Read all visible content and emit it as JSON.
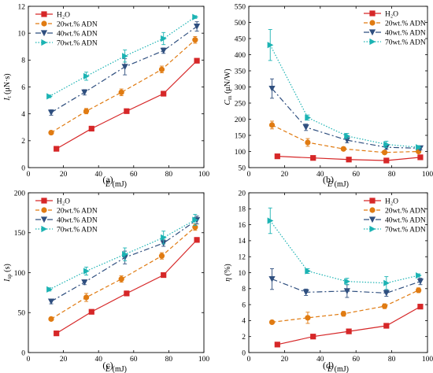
{
  "colors": {
    "H2O": "#d62728",
    "20wt.% ADN": "#e07b12",
    "40wt.% ADN": "#2f4f7f",
    "70wt.% ADN": "#1bb3b3"
  },
  "chart_data": [
    {
      "type": "line",
      "panel_label": "(a)",
      "xlabel_var": "E",
      "xlabel_unit": " (mJ)",
      "ylabel_var": "I",
      "ylabel_sub": "t",
      "ylabel_unit": " (μN·s)",
      "xlim": [
        0,
        100
      ],
      "ylim": [
        0,
        12
      ],
      "xticks": [
        0,
        20,
        40,
        60,
        80,
        100
      ],
      "yticks": [
        0,
        2,
        4,
        6,
        8,
        10,
        12
      ],
      "legend_position": "top-left",
      "series": [
        {
          "name": "H₂O",
          "key": "H2O",
          "marker": "square",
          "dash": "",
          "x": [
            16,
            36,
            56,
            77,
            96
          ],
          "y": [
            1.4,
            2.9,
            4.2,
            5.5,
            7.95
          ],
          "err": [
            0.1,
            0.1,
            0.15,
            0.1,
            0.15
          ]
        },
        {
          "name": "20wt.% ADN",
          "key": "20wt.% ADN",
          "marker": "circle",
          "dash": "5,3",
          "x": [
            13,
            33,
            53,
            76,
            95
          ],
          "y": [
            2.6,
            4.2,
            5.6,
            7.3,
            9.5
          ],
          "err": [
            0.1,
            0.2,
            0.25,
            0.25,
            0.25
          ]
        },
        {
          "name": "40wt.% ADN",
          "key": "40wt.% ADN",
          "marker": "triangle-down",
          "dash": "7,3,2,3",
          "x": [
            13,
            32,
            55,
            77,
            96
          ],
          "y": [
            4.1,
            5.6,
            7.5,
            8.7,
            10.5
          ],
          "err": [
            0.2,
            0.2,
            0.6,
            0.2,
            0.35
          ]
        },
        {
          "name": "70wt.% ADN",
          "key": "70wt.% ADN",
          "marker": "triangle-right",
          "dash": "1.5,2",
          "x": [
            12,
            33,
            55,
            77,
            95
          ],
          "y": [
            5.3,
            6.8,
            8.3,
            9.6,
            11.2
          ],
          "err": [
            0.1,
            0.3,
            0.45,
            0.45,
            0.1
          ]
        }
      ]
    },
    {
      "type": "line",
      "panel_label": "(b)",
      "xlabel_var": "E",
      "xlabel_unit": " (mJ)",
      "ylabel_var": "C",
      "ylabel_sub": "m",
      "ylabel_unit": " (μN/W)",
      "xlim": [
        0,
        100
      ],
      "ylim": [
        50,
        550
      ],
      "xticks": [
        0,
        20,
        40,
        60,
        80,
        100
      ],
      "yticks": [
        50,
        100,
        150,
        200,
        250,
        300,
        350,
        400,
        450,
        500,
        550
      ],
      "legend_position": "top-right",
      "series": [
        {
          "name": "H₂O",
          "key": "H2O",
          "marker": "square",
          "dash": "",
          "x": [
            16,
            36,
            56,
            77,
            96
          ],
          "y": [
            85,
            80,
            75,
            72,
            82
          ],
          "err": [
            3,
            3,
            3,
            3,
            3
          ]
        },
        {
          "name": "20wt.% ADN",
          "key": "20wt.% ADN",
          "marker": "circle",
          "dash": "5,3",
          "x": [
            13,
            33,
            53,
            76,
            95
          ],
          "y": [
            182,
            128,
            108,
            97,
            100
          ],
          "err": [
            12,
            12,
            5,
            5,
            5
          ]
        },
        {
          "name": "40wt.% ADN",
          "key": "40wt.% ADN",
          "marker": "triangle-down",
          "dash": "7,3,2,3",
          "x": [
            13,
            32,
            55,
            77,
            96
          ],
          "y": [
            295,
            175,
            135,
            113,
            110
          ],
          "err": [
            30,
            10,
            8,
            6,
            5
          ]
        },
        {
          "name": "70wt.% ADN",
          "key": "70wt.% ADN",
          "marker": "triangle-right",
          "dash": "1.5,2",
          "x": [
            12,
            33,
            55,
            77,
            95
          ],
          "y": [
            430,
            205,
            148,
            122,
            113
          ],
          "err": [
            48,
            8,
            8,
            10,
            5
          ]
        }
      ]
    },
    {
      "type": "line",
      "panel_label": "(c)",
      "xlabel_var": "E",
      "xlabel_unit": " (mJ)",
      "ylabel_var": "I",
      "ylabel_sub": "sp",
      "ylabel_unit": " (s)",
      "xlim": [
        0,
        100
      ],
      "ylim": [
        0,
        200
      ],
      "xticks": [
        0,
        20,
        40,
        60,
        80,
        100
      ],
      "yticks": [
        0,
        50,
        100,
        150,
        200
      ],
      "legend_position": "top-left",
      "series": [
        {
          "name": "H₂O",
          "key": "H2O",
          "marker": "square",
          "dash": "",
          "x": [
            16,
            36,
            56,
            77,
            96
          ],
          "y": [
            24,
            51,
            74,
            97,
            141
          ],
          "err": [
            2,
            2,
            3,
            2,
            3
          ]
        },
        {
          "name": "20wt.% ADN",
          "key": "20wt.% ADN",
          "marker": "circle",
          "dash": "5,3",
          "x": [
            13,
            33,
            53,
            76,
            95
          ],
          "y": [
            42,
            69,
            92,
            121,
            157
          ],
          "err": [
            2,
            5,
            4,
            4,
            4
          ]
        },
        {
          "name": "40wt.% ADN",
          "key": "40wt.% ADN",
          "marker": "triangle-down",
          "dash": "7,3,2,3",
          "x": [
            13,
            32,
            55,
            77,
            96
          ],
          "y": [
            64,
            88,
            119,
            137,
            166
          ],
          "err": [
            3,
            3,
            8,
            4,
            5
          ]
        },
        {
          "name": "70wt.% ADN",
          "key": "70wt.% ADN",
          "marker": "triangle-right",
          "dash": "1.5,2",
          "x": [
            12,
            33,
            55,
            77,
            95
          ],
          "y": [
            79,
            102,
            123,
            144,
            166
          ],
          "err": [
            2,
            5,
            8,
            8,
            7
          ]
        }
      ]
    },
    {
      "type": "line",
      "panel_label": "(d)",
      "xlabel_var": "E",
      "xlabel_unit": " (mJ)",
      "ylabel_var": "η",
      "ylabel_sub": "",
      "ylabel_unit": " (%)",
      "xlim": [
        0,
        100
      ],
      "ylim": [
        0,
        20
      ],
      "xticks": [
        0,
        20,
        40,
        60,
        80,
        100
      ],
      "yticks": [
        0,
        2,
        4,
        6,
        8,
        10,
        12,
        14,
        16,
        18,
        20
      ],
      "legend_position": "top-right",
      "series": [
        {
          "name": "H₂O",
          "key": "H2O",
          "marker": "square",
          "dash": "",
          "x": [
            16,
            36,
            56,
            77,
            96
          ],
          "y": [
            1.0,
            2.0,
            2.65,
            3.35,
            5.75
          ],
          "err": [
            0.1,
            0.1,
            0.1,
            0.15,
            0.15
          ]
        },
        {
          "name": "20wt.% ADN",
          "key": "20wt.% ADN",
          "marker": "circle",
          "dash": "5,3",
          "x": [
            13,
            33,
            53,
            76,
            95
          ],
          "y": [
            3.8,
            4.35,
            4.85,
            5.8,
            7.8
          ],
          "err": [
            0.2,
            0.7,
            0.3,
            0.3,
            0.3
          ]
        },
        {
          "name": "40wt.% ADN",
          "key": "40wt.% ADN",
          "marker": "triangle-down",
          "dash": "7,3,2,3",
          "x": [
            13,
            32,
            55,
            77,
            96
          ],
          "y": [
            9.2,
            7.55,
            7.7,
            7.45,
            8.9
          ],
          "err": [
            1.3,
            0.4,
            0.8,
            0.4,
            0.4
          ]
        },
        {
          "name": "70wt.% ADN",
          "key": "70wt.% ADN",
          "marker": "triangle-right",
          "dash": "1.5,2",
          "x": [
            12,
            33,
            55,
            77,
            95
          ],
          "y": [
            16.5,
            10.2,
            8.9,
            8.7,
            9.65
          ],
          "err": [
            1.6,
            0.3,
            0.4,
            0.8,
            0.2
          ]
        }
      ]
    }
  ]
}
